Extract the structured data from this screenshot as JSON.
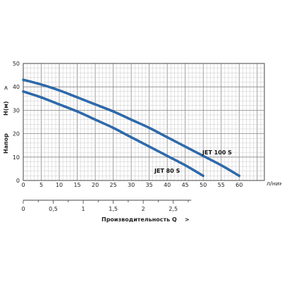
{
  "chart_data": {
    "type": "line",
    "x_ticks": [
      "0",
      "5",
      "10",
      "15",
      "20",
      "25",
      "30",
      "35",
      "40",
      "45",
      "50",
      "55",
      "60"
    ],
    "x_unit": "л/нин",
    "xlim": [
      0,
      67
    ],
    "y_ticks": [
      "0",
      "10",
      "20",
      "30",
      "40",
      "50"
    ],
    "ylim": [
      0,
      50
    ],
    "ylabel_left": "Напор",
    "ylabel_right": "H(м)",
    "ylabel_arrow": ">",
    "q_ticks": [
      "0",
      "0,5",
      "1",
      "1,5",
      "2",
      "2,5"
    ],
    "q_values": [
      0,
      0.5,
      1,
      1.5,
      2,
      2.5
    ],
    "q_per_x": 0.06,
    "qlim": [
      0,
      2.8
    ],
    "q_label": "Производительность Q",
    "q_arrow": ">",
    "grid": true,
    "series": [
      {
        "name": "JET 100 S",
        "color": "#2c6fb6",
        "x": [
          0,
          5,
          10,
          15,
          20,
          25,
          30,
          35,
          40,
          45,
          50,
          55,
          60
        ],
        "y": [
          43,
          41,
          38.5,
          35.5,
          32.5,
          29.5,
          26,
          22.5,
          18.5,
          14.5,
          10.5,
          6.5,
          2
        ]
      },
      {
        "name": "JET 80 S",
        "color": "#2c6fb6",
        "x": [
          0,
          5,
          10,
          15,
          20,
          25,
          30,
          35,
          40,
          45,
          50
        ],
        "y": [
          38,
          35.5,
          32.5,
          29.5,
          26,
          22.5,
          18.5,
          14.5,
          10.5,
          6.5,
          2
        ]
      }
    ]
  }
}
